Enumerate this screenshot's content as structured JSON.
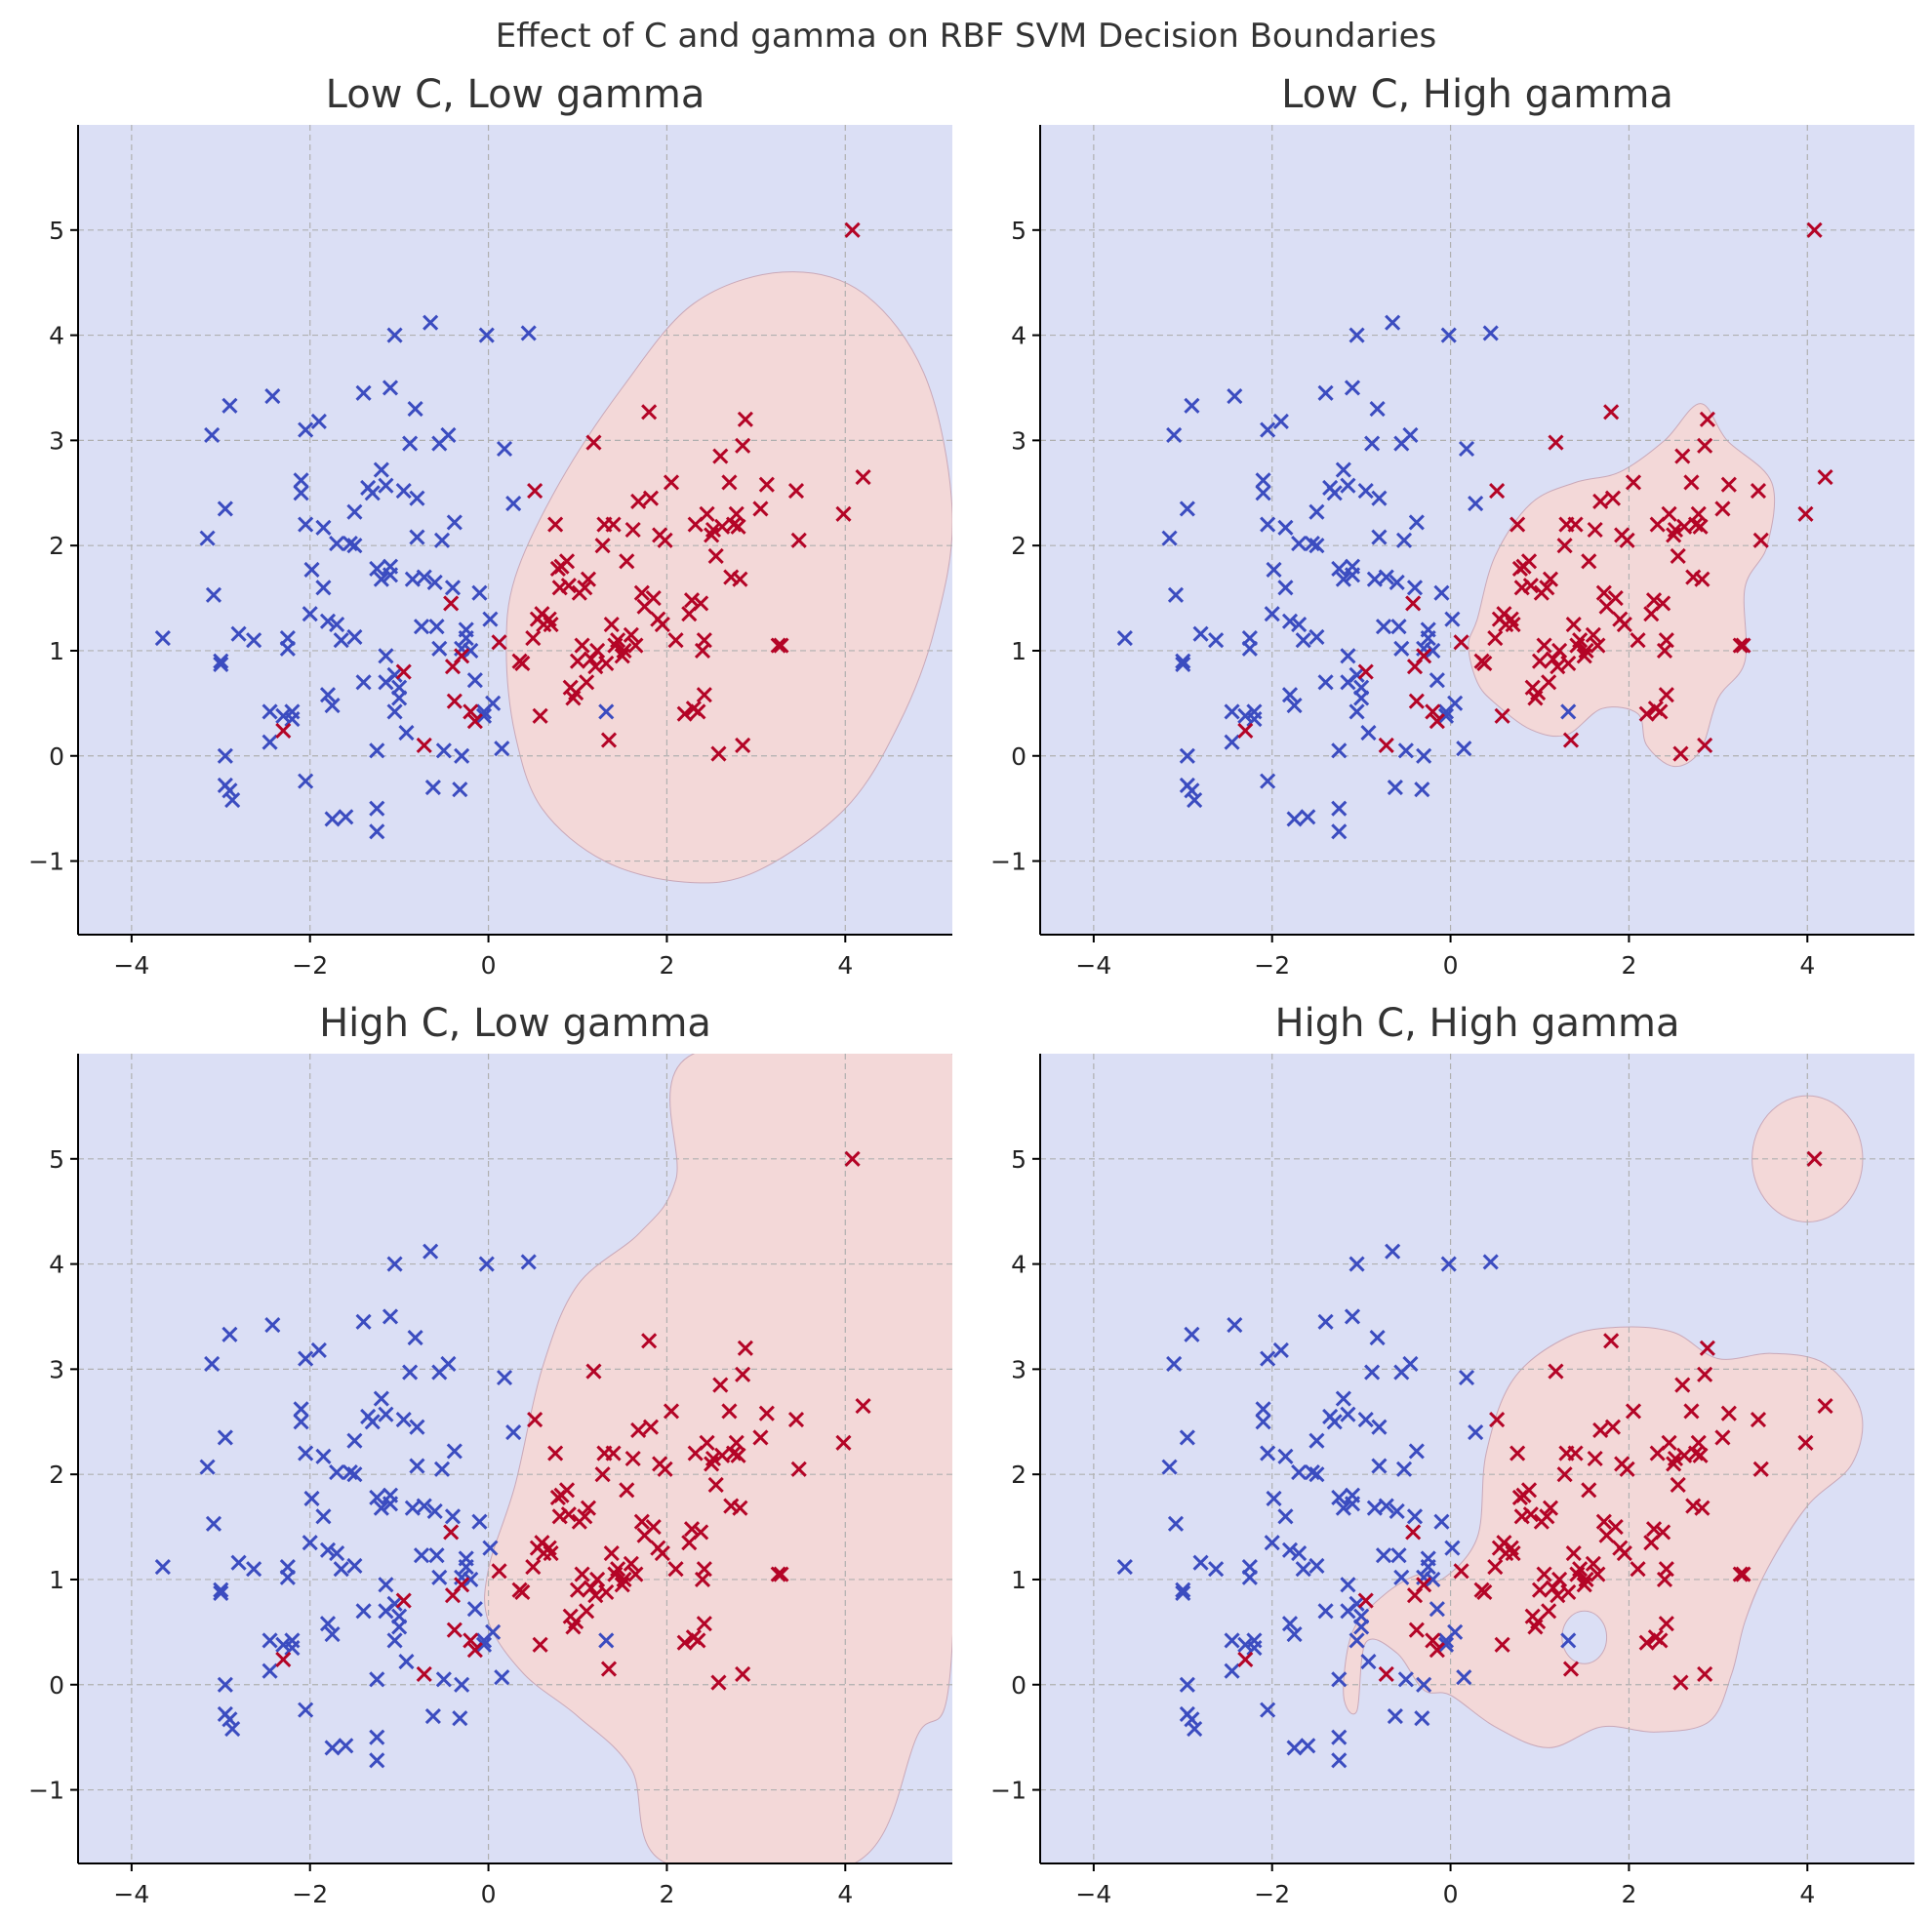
{
  "figure_title": "Effect of C and gamma on RBF SVM Decision Boundaries",
  "colors": {
    "class0": "#3b4cc0",
    "class1": "#b40426",
    "region0": "#dbdff5",
    "region1": "#f3d8d8"
  },
  "chart_data": [
    {
      "type": "scatter",
      "title": "Low C, Low gamma",
      "xlim": [
        -4.6,
        5.2
      ],
      "ylim": [
        -1.7,
        6.0
      ],
      "xticks": [
        -4,
        -2,
        0,
        2,
        4
      ],
      "yticks": [
        -1,
        0,
        1,
        2,
        3,
        4,
        5
      ],
      "grid": true,
      "decision_region_class1": [
        [
          0.2,
          1.0
        ],
        [
          0.3,
          1.7
        ],
        [
          0.8,
          2.6
        ],
        [
          1.5,
          3.5
        ],
        [
          2.3,
          4.3
        ],
        [
          3.3,
          4.6
        ],
        [
          4.2,
          4.4
        ],
        [
          4.9,
          3.6
        ],
        [
          5.2,
          2.3
        ],
        [
          5.0,
          1.2
        ],
        [
          4.6,
          0.3
        ],
        [
          4.0,
          -0.5
        ],
        [
          3.0,
          -1.1
        ],
        [
          2.2,
          -1.2
        ],
        [
          1.3,
          -1.0
        ],
        [
          0.6,
          -0.5
        ],
        [
          0.3,
          0.2
        ]
      ]
    },
    {
      "type": "scatter",
      "title": "Low C, High gamma",
      "xlim": [
        -4.6,
        5.2
      ],
      "ylim": [
        -1.7,
        6.0
      ],
      "xticks": [
        -4,
        -2,
        0,
        2,
        4
      ],
      "yticks": [
        -1,
        0,
        1,
        2,
        3,
        4,
        5
      ],
      "grid": true,
      "decision_region_class1": [
        [
          0.2,
          1.05
        ],
        [
          0.3,
          1.3
        ],
        [
          0.5,
          1.9
        ],
        [
          0.9,
          2.4
        ],
        [
          1.4,
          2.6
        ],
        [
          1.9,
          2.7
        ],
        [
          2.4,
          3.0
        ],
        [
          2.8,
          3.35
        ],
        [
          3.1,
          3.0
        ],
        [
          3.6,
          2.6
        ],
        [
          3.55,
          2.0
        ],
        [
          3.3,
          1.6
        ],
        [
          3.3,
          0.9
        ],
        [
          3.0,
          0.55
        ],
        [
          2.8,
          0.05
        ],
        [
          2.5,
          -0.1
        ],
        [
          2.2,
          0.1
        ],
        [
          2.1,
          0.4
        ],
        [
          1.7,
          0.45
        ],
        [
          1.3,
          0.2
        ],
        [
          0.9,
          0.25
        ],
        [
          0.5,
          0.5
        ],
        [
          0.3,
          0.7
        ]
      ]
    },
    {
      "type": "scatter",
      "title": "High C, Low gamma",
      "xlim": [
        -4.6,
        5.2
      ],
      "ylim": [
        -1.7,
        6.0
      ],
      "xticks": [
        -4,
        -2,
        0,
        2,
        4
      ],
      "yticks": [
        -1,
        0,
        1,
        2,
        3,
        4,
        5
      ],
      "grid": true,
      "decision_region_class1": [
        [
          0.0,
          1.1
        ],
        [
          0.3,
          1.9
        ],
        [
          0.6,
          3.0
        ],
        [
          1.0,
          3.8
        ],
        [
          1.7,
          4.3
        ],
        [
          2.1,
          4.8
        ],
        [
          2.3,
          6.0
        ],
        [
          5.2,
          6.0
        ],
        [
          5.2,
          0.4
        ],
        [
          4.8,
          -0.5
        ],
        [
          4.1,
          -1.7
        ],
        [
          2.0,
          -1.7
        ],
        [
          1.6,
          -0.8
        ],
        [
          1.0,
          -0.3
        ],
        [
          0.4,
          0.1
        ],
        [
          0.0,
          0.6
        ]
      ]
    },
    {
      "type": "scatter",
      "title": "High C, High gamma",
      "xlim": [
        -4.6,
        5.2
      ],
      "ylim": [
        -1.7,
        6.0
      ],
      "xticks": [
        -4,
        -2,
        0,
        2,
        4
      ],
      "yticks": [
        -1,
        0,
        1,
        2,
        3,
        4,
        5
      ],
      "grid": true,
      "decision_region_class1": [
        [
          -0.1,
          1.0
        ],
        [
          0.3,
          1.4
        ],
        [
          0.4,
          2.2
        ],
        [
          0.7,
          2.9
        ],
        [
          1.3,
          3.3
        ],
        [
          1.9,
          3.4
        ],
        [
          2.5,
          3.35
        ],
        [
          3.0,
          3.1
        ],
        [
          3.6,
          3.15
        ],
        [
          4.2,
          3.05
        ],
        [
          4.6,
          2.6
        ],
        [
          4.5,
          2.1
        ],
        [
          4.0,
          1.7
        ],
        [
          3.55,
          1.1
        ],
        [
          3.3,
          0.6
        ],
        [
          3.15,
          0.1
        ],
        [
          2.9,
          -0.35
        ],
        [
          2.3,
          -0.45
        ],
        [
          1.7,
          -0.4
        ],
        [
          1.1,
          -0.6
        ],
        [
          0.5,
          -0.4
        ],
        [
          0.0,
          -0.1
        ],
        [
          -0.3,
          -0.05
        ],
        [
          -0.6,
          0.3
        ],
        [
          -0.95,
          0.4
        ],
        [
          -1.05,
          -0.25
        ],
        [
          -1.2,
          -0.1
        ],
        [
          -1.1,
          0.5
        ],
        [
          -0.75,
          0.85
        ],
        [
          -0.35,
          1.05
        ]
      ],
      "decision_hole": {
        "cx": 1.5,
        "cy": 0.45,
        "rx": 0.25,
        "ry": 0.25
      },
      "decision_island": {
        "cx": 4.0,
        "cy": 5.0,
        "rx": 0.62,
        "ry": 0.6
      }
    }
  ],
  "points_class0": [
    [
      -3.65,
      1.12
    ],
    [
      -3.15,
      2.07
    ],
    [
      -3.1,
      3.05
    ],
    [
      -3.08,
      1.53
    ],
    [
      -3.0,
      0.87
    ],
    [
      -3.0,
      0.9
    ],
    [
      -2.95,
      0.0
    ],
    [
      -2.95,
      2.35
    ],
    [
      -2.95,
      -0.28
    ],
    [
      -2.9,
      3.33
    ],
    [
      -2.9,
      -0.33
    ],
    [
      -2.87,
      -0.42
    ],
    [
      -2.8,
      1.16
    ],
    [
      -2.63,
      1.1
    ],
    [
      -2.45,
      0.42
    ],
    [
      -2.45,
      0.13
    ],
    [
      -2.42,
      3.42
    ],
    [
      -2.3,
      0.38
    ],
    [
      -2.25,
      1.12
    ],
    [
      -2.25,
      1.02
    ],
    [
      -2.2,
      0.35
    ],
    [
      -2.2,
      0.42
    ],
    [
      -2.1,
      2.62
    ],
    [
      -2.1,
      2.5
    ],
    [
      -2.05,
      2.2
    ],
    [
      -2.05,
      3.1
    ],
    [
      -2.05,
      -0.24
    ],
    [
      -2.0,
      1.35
    ],
    [
      -1.98,
      1.77
    ],
    [
      -1.9,
      3.18
    ],
    [
      -1.85,
      1.6
    ],
    [
      -1.85,
      2.17
    ],
    [
      -1.8,
      0.58
    ],
    [
      -1.8,
      1.28
    ],
    [
      -1.75,
      0.48
    ],
    [
      -1.75,
      -0.6
    ],
    [
      -1.7,
      2.02
    ],
    [
      -1.7,
      1.25
    ],
    [
      -1.65,
      1.1
    ],
    [
      -1.6,
      -0.58
    ],
    [
      -1.55,
      2.02
    ],
    [
      -1.5,
      1.13
    ],
    [
      -1.5,
      2.32
    ],
    [
      -1.5,
      2.0
    ],
    [
      -1.4,
      3.45
    ],
    [
      -1.4,
      0.7
    ],
    [
      -1.35,
      2.55
    ],
    [
      -1.3,
      2.5
    ],
    [
      -1.25,
      1.78
    ],
    [
      -1.25,
      0.05
    ],
    [
      -1.25,
      -0.72
    ],
    [
      -1.25,
      -0.5
    ],
    [
      -1.2,
      1.68
    ],
    [
      -1.2,
      2.72
    ],
    [
      -1.15,
      0.95
    ],
    [
      -1.15,
      2.57
    ],
    [
      -1.15,
      0.7
    ],
    [
      -1.1,
      1.8
    ],
    [
      -1.1,
      1.72
    ],
    [
      -1.1,
      3.5
    ],
    [
      -1.05,
      4.0
    ],
    [
      -1.05,
      0.42
    ],
    [
      -1.05,
      0.77
    ],
    [
      -1.0,
      0.55
    ],
    [
      -1.0,
      0.65
    ],
    [
      -0.95,
      2.52
    ],
    [
      -0.92,
      0.22
    ],
    [
      -0.88,
      2.97
    ],
    [
      -0.85,
      1.68
    ],
    [
      -0.82,
      3.3
    ],
    [
      -0.8,
      2.08
    ],
    [
      -0.8,
      2.45
    ],
    [
      -0.75,
      1.23
    ],
    [
      -0.72,
      1.7
    ],
    [
      -0.65,
      4.12
    ],
    [
      -0.62,
      -0.3
    ],
    [
      -0.6,
      1.65
    ],
    [
      -0.58,
      1.23
    ],
    [
      -0.55,
      1.02
    ],
    [
      -0.55,
      2.97
    ],
    [
      -0.52,
      2.05
    ],
    [
      -0.5,
      0.05
    ],
    [
      -0.45,
      3.05
    ],
    [
      -0.4,
      1.6
    ],
    [
      -0.38,
      2.22
    ],
    [
      -0.3,
      1.02
    ],
    [
      -0.3,
      0.0
    ],
    [
      -0.32,
      -0.32
    ],
    [
      -0.25,
      1.2
    ],
    [
      -0.25,
      1.12
    ],
    [
      -0.2,
      1.0
    ],
    [
      -0.15,
      0.72
    ],
    [
      -0.1,
      1.55
    ],
    [
      -0.05,
      0.38
    ],
    [
      -0.05,
      0.42
    ],
    [
      -0.02,
      4.0
    ],
    [
      0.02,
      1.3
    ],
    [
      0.05,
      0.5
    ],
    [
      0.15,
      0.07
    ],
    [
      0.18,
      2.92
    ],
    [
      0.28,
      2.4
    ],
    [
      0.45,
      4.02
    ],
    [
      1.32,
      0.42
    ]
  ],
  "points_class1": [
    [
      -2.3,
      0.24
    ],
    [
      -0.95,
      0.8
    ],
    [
      -0.72,
      0.1
    ],
    [
      -0.42,
      1.45
    ],
    [
      -0.4,
      0.85
    ],
    [
      -0.38,
      0.52
    ],
    [
      -0.3,
      0.95
    ],
    [
      -0.2,
      0.42
    ],
    [
      -0.15,
      0.33
    ],
    [
      0.12,
      1.08
    ],
    [
      0.35,
      0.9
    ],
    [
      0.38,
      0.88
    ],
    [
      0.5,
      1.12
    ],
    [
      0.52,
      2.52
    ],
    [
      0.55,
      1.3
    ],
    [
      0.58,
      0.38
    ],
    [
      0.6,
      1.35
    ],
    [
      0.62,
      1.25
    ],
    [
      0.68,
      1.3
    ],
    [
      0.7,
      1.25
    ],
    [
      0.75,
      2.2
    ],
    [
      0.78,
      1.78
    ],
    [
      0.8,
      1.6
    ],
    [
      0.82,
      1.8
    ],
    [
      0.88,
      1.85
    ],
    [
      0.9,
      1.62
    ],
    [
      0.92,
      0.65
    ],
    [
      0.95,
      0.55
    ],
    [
      0.98,
      0.6
    ],
    [
      1.0,
      0.9
    ],
    [
      1.02,
      1.55
    ],
    [
      1.05,
      1.05
    ],
    [
      1.08,
      1.6
    ],
    [
      1.1,
      0.7
    ],
    [
      1.12,
      1.68
    ],
    [
      1.15,
      0.92
    ],
    [
      1.18,
      2.98
    ],
    [
      1.2,
      0.85
    ],
    [
      1.22,
      1.0
    ],
    [
      1.28,
      2.0
    ],
    [
      1.3,
      2.2
    ],
    [
      1.32,
      0.88
    ],
    [
      1.35,
      0.15
    ],
    [
      1.38,
      1.25
    ],
    [
      1.4,
      2.2
    ],
    [
      1.42,
      1.05
    ],
    [
      1.45,
      1.1
    ],
    [
      1.5,
      0.95
    ],
    [
      1.52,
      1.0
    ],
    [
      1.55,
      1.85
    ],
    [
      1.6,
      1.15
    ],
    [
      1.62,
      2.15
    ],
    [
      1.65,
      1.05
    ],
    [
      1.68,
      2.42
    ],
    [
      1.72,
      1.55
    ],
    [
      1.75,
      1.42
    ],
    [
      1.8,
      3.27
    ],
    [
      1.82,
      2.45
    ],
    [
      1.85,
      1.5
    ],
    [
      1.9,
      1.3
    ],
    [
      1.92,
      2.1
    ],
    [
      1.95,
      1.25
    ],
    [
      1.98,
      2.05
    ],
    [
      2.05,
      2.6
    ],
    [
      2.1,
      1.1
    ],
    [
      2.2,
      0.4
    ],
    [
      2.25,
      1.35
    ],
    [
      2.28,
      1.48
    ],
    [
      2.3,
      0.45
    ],
    [
      2.32,
      2.2
    ],
    [
      2.35,
      0.42
    ],
    [
      2.38,
      1.45
    ],
    [
      2.4,
      1.0
    ],
    [
      2.42,
      0.58
    ],
    [
      2.42,
      1.1
    ],
    [
      2.45,
      2.3
    ],
    [
      2.5,
      2.1
    ],
    [
      2.52,
      2.15
    ],
    [
      2.55,
      1.9
    ],
    [
      2.58,
      0.02
    ],
    [
      2.6,
      2.85
    ],
    [
      2.62,
      2.18
    ],
    [
      2.7,
      2.6
    ],
    [
      2.72,
      1.7
    ],
    [
      2.75,
      2.2
    ],
    [
      2.78,
      2.3
    ],
    [
      2.8,
      2.18
    ],
    [
      2.82,
      1.68
    ],
    [
      2.85,
      0.1
    ],
    [
      2.85,
      2.95
    ],
    [
      2.88,
      3.2
    ],
    [
      3.05,
      2.35
    ],
    [
      3.12,
      2.58
    ],
    [
      3.25,
      1.05
    ],
    [
      3.28,
      1.05
    ],
    [
      3.45,
      2.52
    ],
    [
      3.48,
      2.05
    ],
    [
      3.98,
      2.3
    ],
    [
      4.08,
      5.0
    ],
    [
      4.2,
      2.65
    ]
  ]
}
